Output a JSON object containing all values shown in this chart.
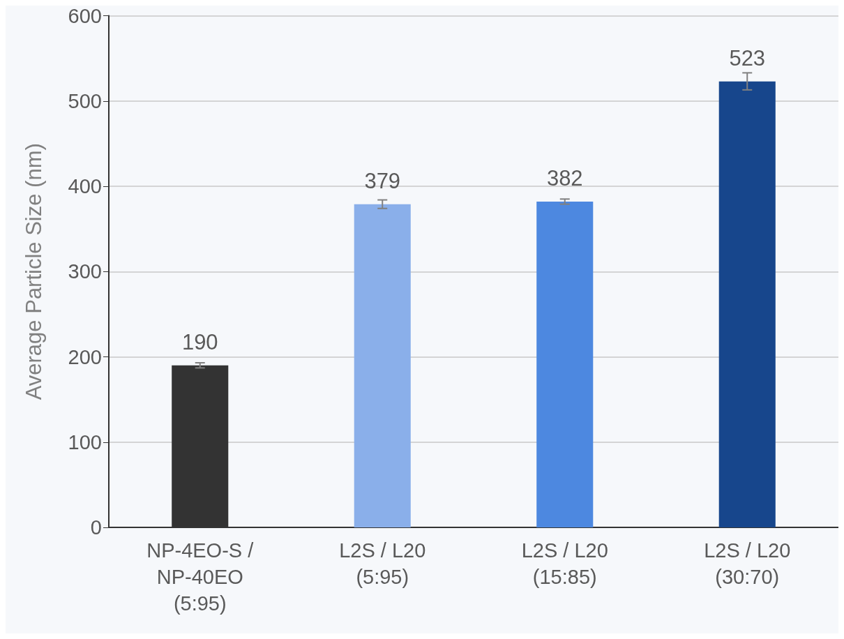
{
  "chart_data": {
    "type": "bar",
    "ylabel": "Average Particle Size (nm)",
    "categories": [
      "NP-4EO-S /\nNP-40EO\n(5:95)",
      "L2S / L20\n(5:95)",
      "L2S / L20\n(15:85)",
      "L2S / L20\n(30:70)"
    ],
    "values": [
      190,
      379,
      382,
      523
    ],
    "errors": [
      3,
      5,
      3,
      10
    ],
    "colors": [
      "#333333",
      "#8aafea",
      "#4d88e0",
      "#17468c"
    ],
    "ylim": [
      0,
      600
    ],
    "yticks": [
      0,
      100,
      200,
      300,
      400,
      500,
      600
    ],
    "grid": "y",
    "data_labels": true
  }
}
